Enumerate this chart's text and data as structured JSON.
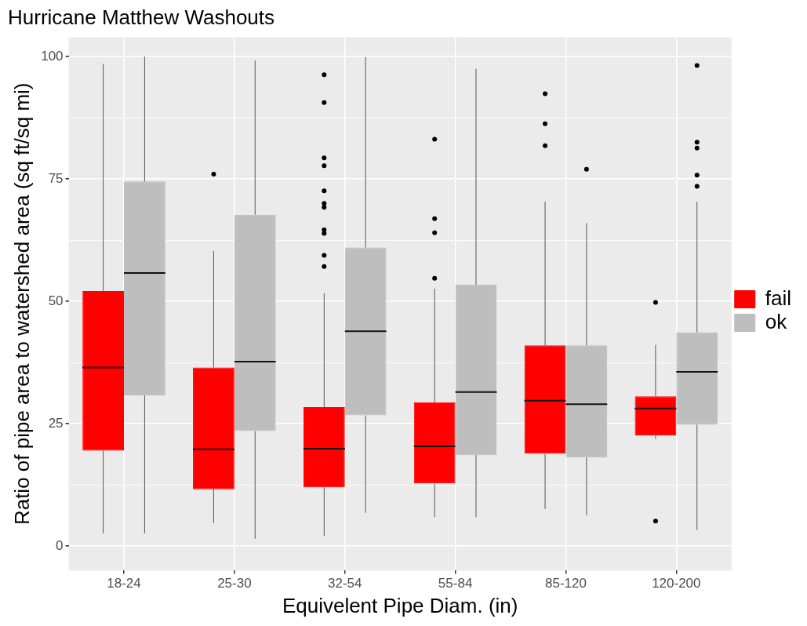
{
  "chart_data": {
    "type": "box",
    "title": "Hurricane Matthew Washouts",
    "xlabel": "Equivelent Pipe Diam. (in)",
    "ylabel": "Ratio of pipe area to watershed area (sq ft/sq mi)",
    "categories": [
      "18-24",
      "25-30",
      "32-54",
      "55-84",
      "85-120",
      "120-200"
    ],
    "series": [
      {
        "name": "fail",
        "color": "#ff0000",
        "boxes": [
          {
            "low": 2.6,
            "q1": 19.5,
            "median": 36.5,
            "q3": 52.1,
            "high": 98.5
          },
          {
            "low": 4.7,
            "q1": 11.6,
            "median": 19.8,
            "q3": 36.5,
            "high": 60.3,
            "outliers": [
              76
            ]
          },
          {
            "low": 2.1,
            "q1": 12.0,
            "median": 19.9,
            "q3": 28.4,
            "high": 51.7,
            "outliers": [
              96.3,
              90.6,
              79.3,
              77.7,
              72.6,
              70.0,
              69.2,
              64.6,
              63.9,
              59.4,
              57.1
            ]
          },
          {
            "low": 5.9,
            "q1": 12.8,
            "median": 20.4,
            "q3": 29.4,
            "high": 52.6,
            "outliers": [
              83.1,
              66.9,
              64.0,
              54.7
            ]
          },
          {
            "low": 7.6,
            "q1": 18.9,
            "median": 29.7,
            "q3": 41.0,
            "high": 70.4,
            "outliers": [
              92.4,
              86.3,
              81.8
            ]
          },
          {
            "low": 21.9,
            "q1": 22.6,
            "median": 28.1,
            "q3": 30.6,
            "high": 41.1,
            "outliers": [
              49.8,
              5.1
            ]
          }
        ]
      },
      {
        "name": "ok",
        "color": "#bebebe",
        "boxes": [
          {
            "low": 2.6,
            "q1": 30.8,
            "median": 55.8,
            "q3": 74.5,
            "high": 100
          },
          {
            "low": 1.5,
            "q1": 23.5,
            "median": 37.7,
            "q3": 67.7,
            "high": 99.2
          },
          {
            "low": 6.8,
            "q1": 26.7,
            "median": 43.9,
            "q3": 61.0,
            "high": 99.9
          },
          {
            "low": 5.9,
            "q1": 18.6,
            "median": 31.5,
            "q3": 53.4,
            "high": 97.5
          },
          {
            "low": 6.3,
            "q1": 18.1,
            "median": 29.0,
            "q3": 41.0,
            "high": 66.0,
            "outliers": [
              77.0
            ]
          },
          {
            "low": 3.3,
            "q1": 24.8,
            "median": 35.6,
            "q3": 43.7,
            "high": 70.4,
            "outliers": [
              98.2,
              82.5,
              81.3,
              75.8,
              73.5
            ]
          }
        ]
      }
    ],
    "ylim": [
      -5,
      104
    ],
    "yticks": [
      0,
      {
        "value": 12.5,
        "label": null
      },
      25,
      {
        "value": 37.5,
        "label": null
      },
      50,
      {
        "value": 62.5,
        "label": null
      },
      75,
      {
        "value": 87.5,
        "label": null
      },
      100
    ],
    "grid": true,
    "legend": "right"
  }
}
